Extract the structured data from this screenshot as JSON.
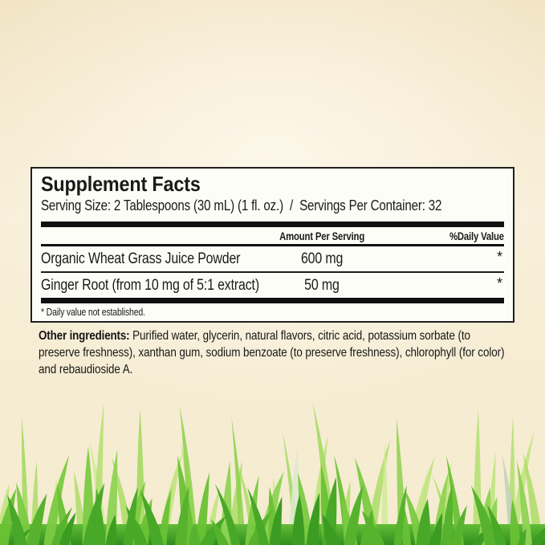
{
  "panel": {
    "title": "Supplement Facts",
    "serving_line": "Serving Size: 2 Tablespoons (30 mL) (1 fl. oz.)  /  Servings Per Container: 32",
    "columns": {
      "amount_header": "Amount Per Serving",
      "daily_value_header": "%Daily Value"
    },
    "rows": [
      {
        "name": "Organic Wheat Grass Juice Powder",
        "amount": "600 mg",
        "daily_value": "*"
      },
      {
        "name": "Ginger Root (from 10 mg of 5:1 extract)",
        "amount": "50 mg",
        "daily_value": "*"
      }
    ],
    "footnote": "* Daily value not established."
  },
  "other_ingredients": {
    "label": "Other ingredients:",
    "text": " Purified water, glycerin, natural flavors, citric acid, potassium sorbate (to preserve freshness), xanthan gum, sodium benzoate (to preserve freshness), chlorophyll (for color) and rebaudioside A."
  },
  "decor": {
    "background_color": "#f5ebd0",
    "panel_background": "#fdfdf8",
    "panel_border_color": "#1f1f1f",
    "rule_color": "#101010",
    "grass_palette": {
      "back": [
        "#cdeb90",
        "#b9e473",
        "#a8dc60"
      ],
      "tall": [
        "#9fd95c",
        "#8bd14b",
        "#b2e06e"
      ],
      "mid": [
        "#8ed354",
        "#7aca41",
        "#69c134"
      ],
      "front": [
        "#57b22e",
        "#48a827",
        "#3c9c21"
      ],
      "pale": [
        "#c3d3b9",
        "#dcead0"
      ],
      "base_gradient": [
        "#63bc38",
        "#2f8e1c"
      ]
    }
  }
}
